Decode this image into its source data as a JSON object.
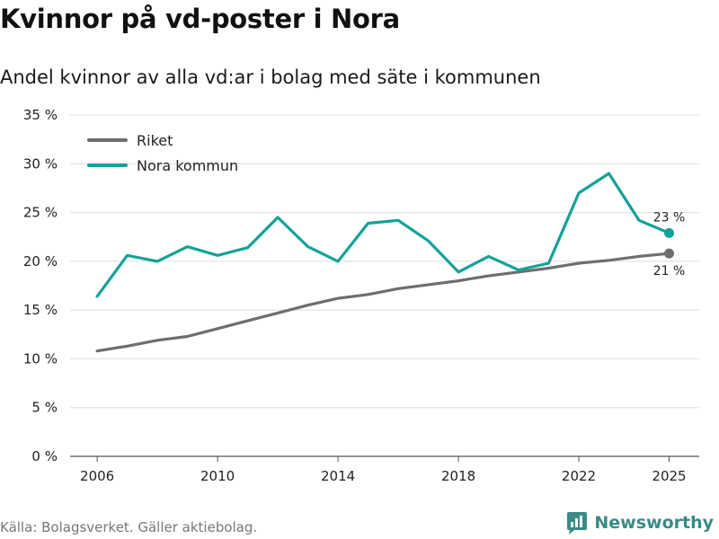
{
  "title": "Kvinnor på vd-poster i Nora",
  "subtitle": "Andel kvinnor av alla vd:ar i bolag med säte i kommunen",
  "footer": "Källa: Bolagsverket. Gäller aktiebolag.",
  "brand": {
    "name": "Newsworthy",
    "icon": "newsworthy-logo-icon",
    "color": "#3b8a86"
  },
  "chart_data": {
    "type": "line",
    "x": [
      2006,
      2007,
      2008,
      2009,
      2010,
      2011,
      2012,
      2013,
      2014,
      2015,
      2016,
      2017,
      2018,
      2019,
      2020,
      2021,
      2022,
      2023,
      2024,
      2025
    ],
    "series": [
      {
        "name": "Riket",
        "color": "#6e6e6e",
        "values": [
          10.8,
          11.3,
          11.9,
          12.3,
          13.1,
          13.9,
          14.7,
          15.5,
          16.2,
          16.6,
          17.2,
          17.6,
          18.0,
          18.5,
          18.9,
          19.3,
          19.8,
          20.1,
          20.5,
          20.8
        ]
      },
      {
        "name": "Nora kommun",
        "color": "#13a298",
        "values": [
          16.4,
          20.6,
          20.0,
          21.5,
          20.6,
          21.4,
          24.5,
          21.5,
          20.0,
          23.9,
          24.2,
          22.1,
          18.9,
          20.5,
          19.1,
          19.8,
          27.0,
          29.0,
          24.2,
          22.9
        ]
      }
    ],
    "ylim": [
      0,
      35
    ],
    "yticks": [
      0,
      5,
      10,
      15,
      20,
      25,
      30,
      35
    ],
    "ytick_labels": [
      "0 %",
      "5 %",
      "10 %",
      "15 %",
      "20 %",
      "25 %",
      "30 %",
      "35 %"
    ],
    "xticks": [
      2006,
      2010,
      2014,
      2018,
      2022,
      2025
    ],
    "xtick_labels": [
      "2006",
      "2010",
      "2014",
      "2018",
      "2022",
      "2025"
    ],
    "end_labels": {
      "Riket": "21 %",
      "Nora kommun": "23 %"
    },
    "legend": [
      "Riket",
      "Nora kommun"
    ],
    "legend_position": "top-left",
    "grid": true
  }
}
